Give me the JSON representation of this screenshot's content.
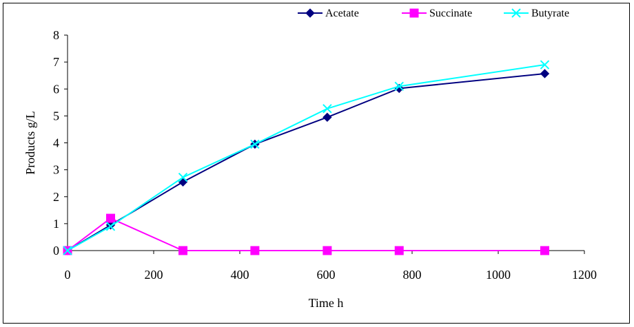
{
  "chart_data": {
    "type": "line",
    "title": "",
    "xlabel": "Time h",
    "ylabel": "Products g/L",
    "xlim": [
      0,
      1200
    ],
    "ylim": [
      0,
      8
    ],
    "x_ticks": [
      0,
      200,
      400,
      600,
      800,
      1000,
      1200
    ],
    "y_ticks": [
      0,
      1,
      2,
      3,
      4,
      5,
      6,
      7,
      8
    ],
    "grid": false,
    "legend_position": "top-right",
    "series": [
      {
        "name": "Acetate",
        "color": "#000080",
        "marker": "diamond",
        "x": [
          0,
          100,
          268,
          435,
          603,
          770,
          1108
        ],
        "y": [
          0,
          0.95,
          2.55,
          3.95,
          4.95,
          6.02,
          6.57
        ]
      },
      {
        "name": "Succinate",
        "color": "#ff00ff",
        "marker": "square",
        "x": [
          0,
          100,
          268,
          435,
          603,
          770,
          1108
        ],
        "y": [
          0,
          1.2,
          0,
          0,
          0,
          0,
          0
        ]
      },
      {
        "name": "Butyrate",
        "color": "#00ffff",
        "marker": "x",
        "x": [
          0,
          100,
          268,
          435,
          603,
          770,
          1108
        ],
        "y": [
          0,
          0.9,
          2.72,
          3.95,
          5.27,
          6.1,
          6.9
        ]
      }
    ]
  }
}
